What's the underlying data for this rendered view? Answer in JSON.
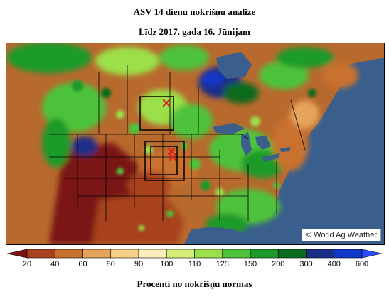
{
  "map": {
    "title": "ASV 14 dienu nokrišņu analīze",
    "subtitle": "Līdz 2017. gada 16. Jūnijam",
    "credit": "© World Ag Weather",
    "caption": "Procenti no nokrišņu normas"
  },
  "legend": {
    "labels": [
      "20",
      "40",
      "60",
      "80",
      "90",
      "100",
      "110",
      "125",
      "150",
      "200",
      "300",
      "400",
      "600"
    ],
    "colors": [
      "#7a1414",
      "#a8421e",
      "#c9712e",
      "#e6a45a",
      "#f6d089",
      "#fbeebd",
      "#d3ef7a",
      "#9be04a",
      "#4ec33a",
      "#1e9a2a",
      "#0b6b1f",
      "#1c2f86",
      "#1238c8",
      "#2b4bff"
    ]
  }
}
